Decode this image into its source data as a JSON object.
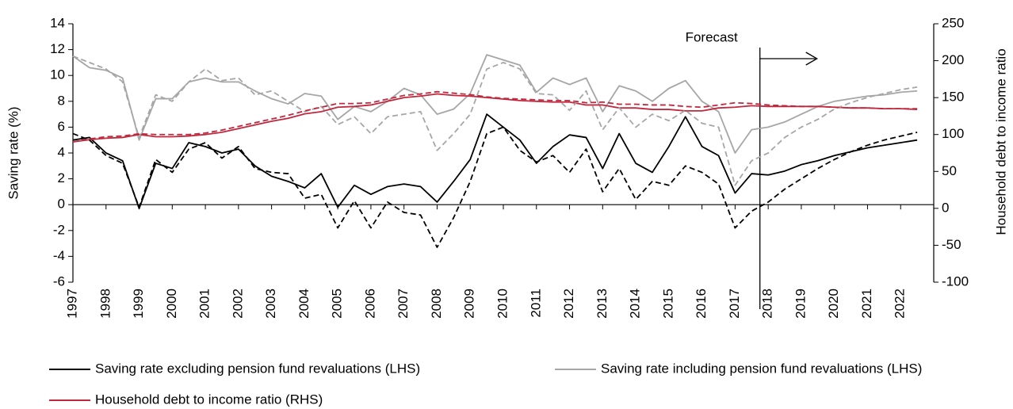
{
  "chart_data": {
    "type": "line",
    "y_label": "Saving rate (%)",
    "y2_label": "Household debt to income ratio",
    "annotation": {
      "text": "Forecast",
      "x": 2017.75
    },
    "x": [
      1997,
      1997.5,
      1998,
      1998.5,
      1999,
      1999.5,
      2000,
      2000.5,
      2001,
      2001.5,
      2002,
      2002.5,
      2003,
      2003.5,
      2004,
      2004.5,
      2005,
      2005.5,
      2006,
      2006.5,
      2007,
      2007.5,
      2008,
      2008.5,
      2009,
      2009.5,
      2010,
      2010.5,
      2011,
      2011.5,
      2012,
      2012.5,
      2013,
      2013.5,
      2014,
      2014.5,
      2015,
      2015.5,
      2016,
      2016.5,
      2017,
      2017.5,
      2018,
      2018.5,
      2019,
      2019.5,
      2020,
      2020.5,
      2021,
      2021.5,
      2022,
      2022.5
    ],
    "xlim": [
      1997,
      2023
    ],
    "xticks": [
      1997,
      1998,
      1999,
      2000,
      2001,
      2002,
      2003,
      2004,
      2005,
      2006,
      2007,
      2008,
      2009,
      2010,
      2011,
      2012,
      2013,
      2014,
      2015,
      2016,
      2017,
      2018,
      2019,
      2020,
      2021,
      2022
    ],
    "ylim": [
      -6,
      14
    ],
    "yticks": [
      -6,
      -4,
      -2,
      0,
      2,
      4,
      6,
      8,
      10,
      12,
      14
    ],
    "y2lim": [
      -100,
      250
    ],
    "y2ticks": [
      -100,
      -50,
      0,
      50,
      100,
      150,
      200,
      250
    ],
    "series": [
      {
        "name": "Saving rate excluding pension fund revaluations (LHS)",
        "color": "#000000",
        "dash": false,
        "values": [
          5.0,
          5.2,
          4.0,
          3.4,
          -0.3,
          3.2,
          2.8,
          4.8,
          4.5,
          4.0,
          4.3,
          3.0,
          2.2,
          1.8,
          1.3,
          2.4,
          -0.2,
          1.5,
          0.8,
          1.4,
          1.6,
          1.4,
          0.2,
          1.8,
          3.5,
          7.0,
          6.0,
          5.0,
          3.2,
          4.5,
          5.4,
          5.2,
          2.8,
          5.5,
          3.2,
          2.5,
          4.5,
          6.8,
          4.5,
          3.8,
          0.9,
          2.4,
          2.3,
          2.6,
          3.1,
          3.4,
          3.8,
          4.1,
          4.4,
          4.6,
          4.8,
          5.0
        ]
      },
      {
        "name": "Saving rate including pension fund revaluations (LHS)",
        "color": "#a6a6a6",
        "dash": false,
        "values": [
          11.5,
          10.6,
          10.4,
          9.8,
          5.0,
          8.2,
          8.2,
          9.5,
          9.8,
          9.5,
          9.5,
          8.8,
          8.2,
          7.8,
          8.6,
          8.4,
          6.6,
          7.6,
          7.2,
          8.0,
          9.0,
          8.5,
          7.0,
          7.4,
          8.6,
          11.6,
          11.2,
          10.8,
          8.7,
          9.8,
          9.3,
          9.8,
          7.2,
          9.2,
          8.8,
          8.0,
          9.0,
          9.6,
          8.0,
          7.2,
          4.0,
          5.8,
          6.0,
          6.4,
          7.0,
          7.6,
          8.0,
          8.2,
          8.4,
          8.5,
          8.7,
          8.8
        ]
      },
      {
        "name": "Household debt to income ratio (RHS)",
        "color": "#c0283e",
        "dash": false,
        "axis": "y2",
        "values": [
          90,
          93,
          95,
          96,
          100,
          97,
          97,
          98,
          100,
          103,
          108,
          113,
          118,
          122,
          128,
          131,
          137,
          138,
          140,
          145,
          150,
          152,
          155,
          153,
          152,
          150,
          148,
          146,
          145,
          144,
          144,
          140,
          140,
          136,
          136,
          134,
          134,
          132,
          132,
          136,
          137,
          139,
          138,
          138,
          138,
          138,
          137,
          136,
          136,
          135,
          135,
          134
        ]
      },
      {
        "color": "#000000",
        "dash": true,
        "values": [
          5.5,
          5.0,
          3.8,
          3.2,
          -0.2,
          3.5,
          2.5,
          4.3,
          4.8,
          3.6,
          4.5,
          2.8,
          2.5,
          2.4,
          0.5,
          0.8,
          -1.8,
          0.3,
          -1.8,
          0.2,
          -0.6,
          -0.8,
          -3.3,
          -1.0,
          1.8,
          5.5,
          6.0,
          4.2,
          3.3,
          3.8,
          2.5,
          4.3,
          1.0,
          2.8,
          0.4,
          1.8,
          1.5,
          3.0,
          2.5,
          1.6,
          -1.8,
          -0.5,
          0.2,
          1.2,
          2.0,
          2.8,
          3.5,
          4.1,
          4.6,
          5.0,
          5.3,
          5.6
        ]
      },
      {
        "color": "#a6a6a6",
        "dash": true,
        "values": [
          11.5,
          11.0,
          10.5,
          9.5,
          5.2,
          8.5,
          8.0,
          9.5,
          10.5,
          9.6,
          9.8,
          8.5,
          8.8,
          8.0,
          7.2,
          7.6,
          6.2,
          6.8,
          5.5,
          6.8,
          7.0,
          7.2,
          4.2,
          5.5,
          7.0,
          10.5,
          11.0,
          10.5,
          8.6,
          8.5,
          7.3,
          8.8,
          5.8,
          7.5,
          6.0,
          7.0,
          6.5,
          7.3,
          6.3,
          6.0,
          1.5,
          3.4,
          4.0,
          5.2,
          6.0,
          6.6,
          7.4,
          7.9,
          8.3,
          8.6,
          8.9,
          9.1
        ]
      },
      {
        "color": "#c0283e",
        "dash": true,
        "axis": "y2",
        "values": [
          90,
          94,
          97,
          98,
          101,
          100,
          100,
          100,
          102,
          106,
          111,
          116,
          121,
          126,
          132,
          137,
          142,
          142,
          143,
          148,
          153,
          155,
          158,
          156,
          154,
          151,
          149,
          148,
          147,
          146,
          146,
          143,
          144,
          141,
          141,
          140,
          140,
          138,
          137,
          140,
          143,
          142,
          140,
          139,
          138,
          138,
          137,
          136,
          136,
          135,
          135,
          135
        ]
      }
    ]
  }
}
